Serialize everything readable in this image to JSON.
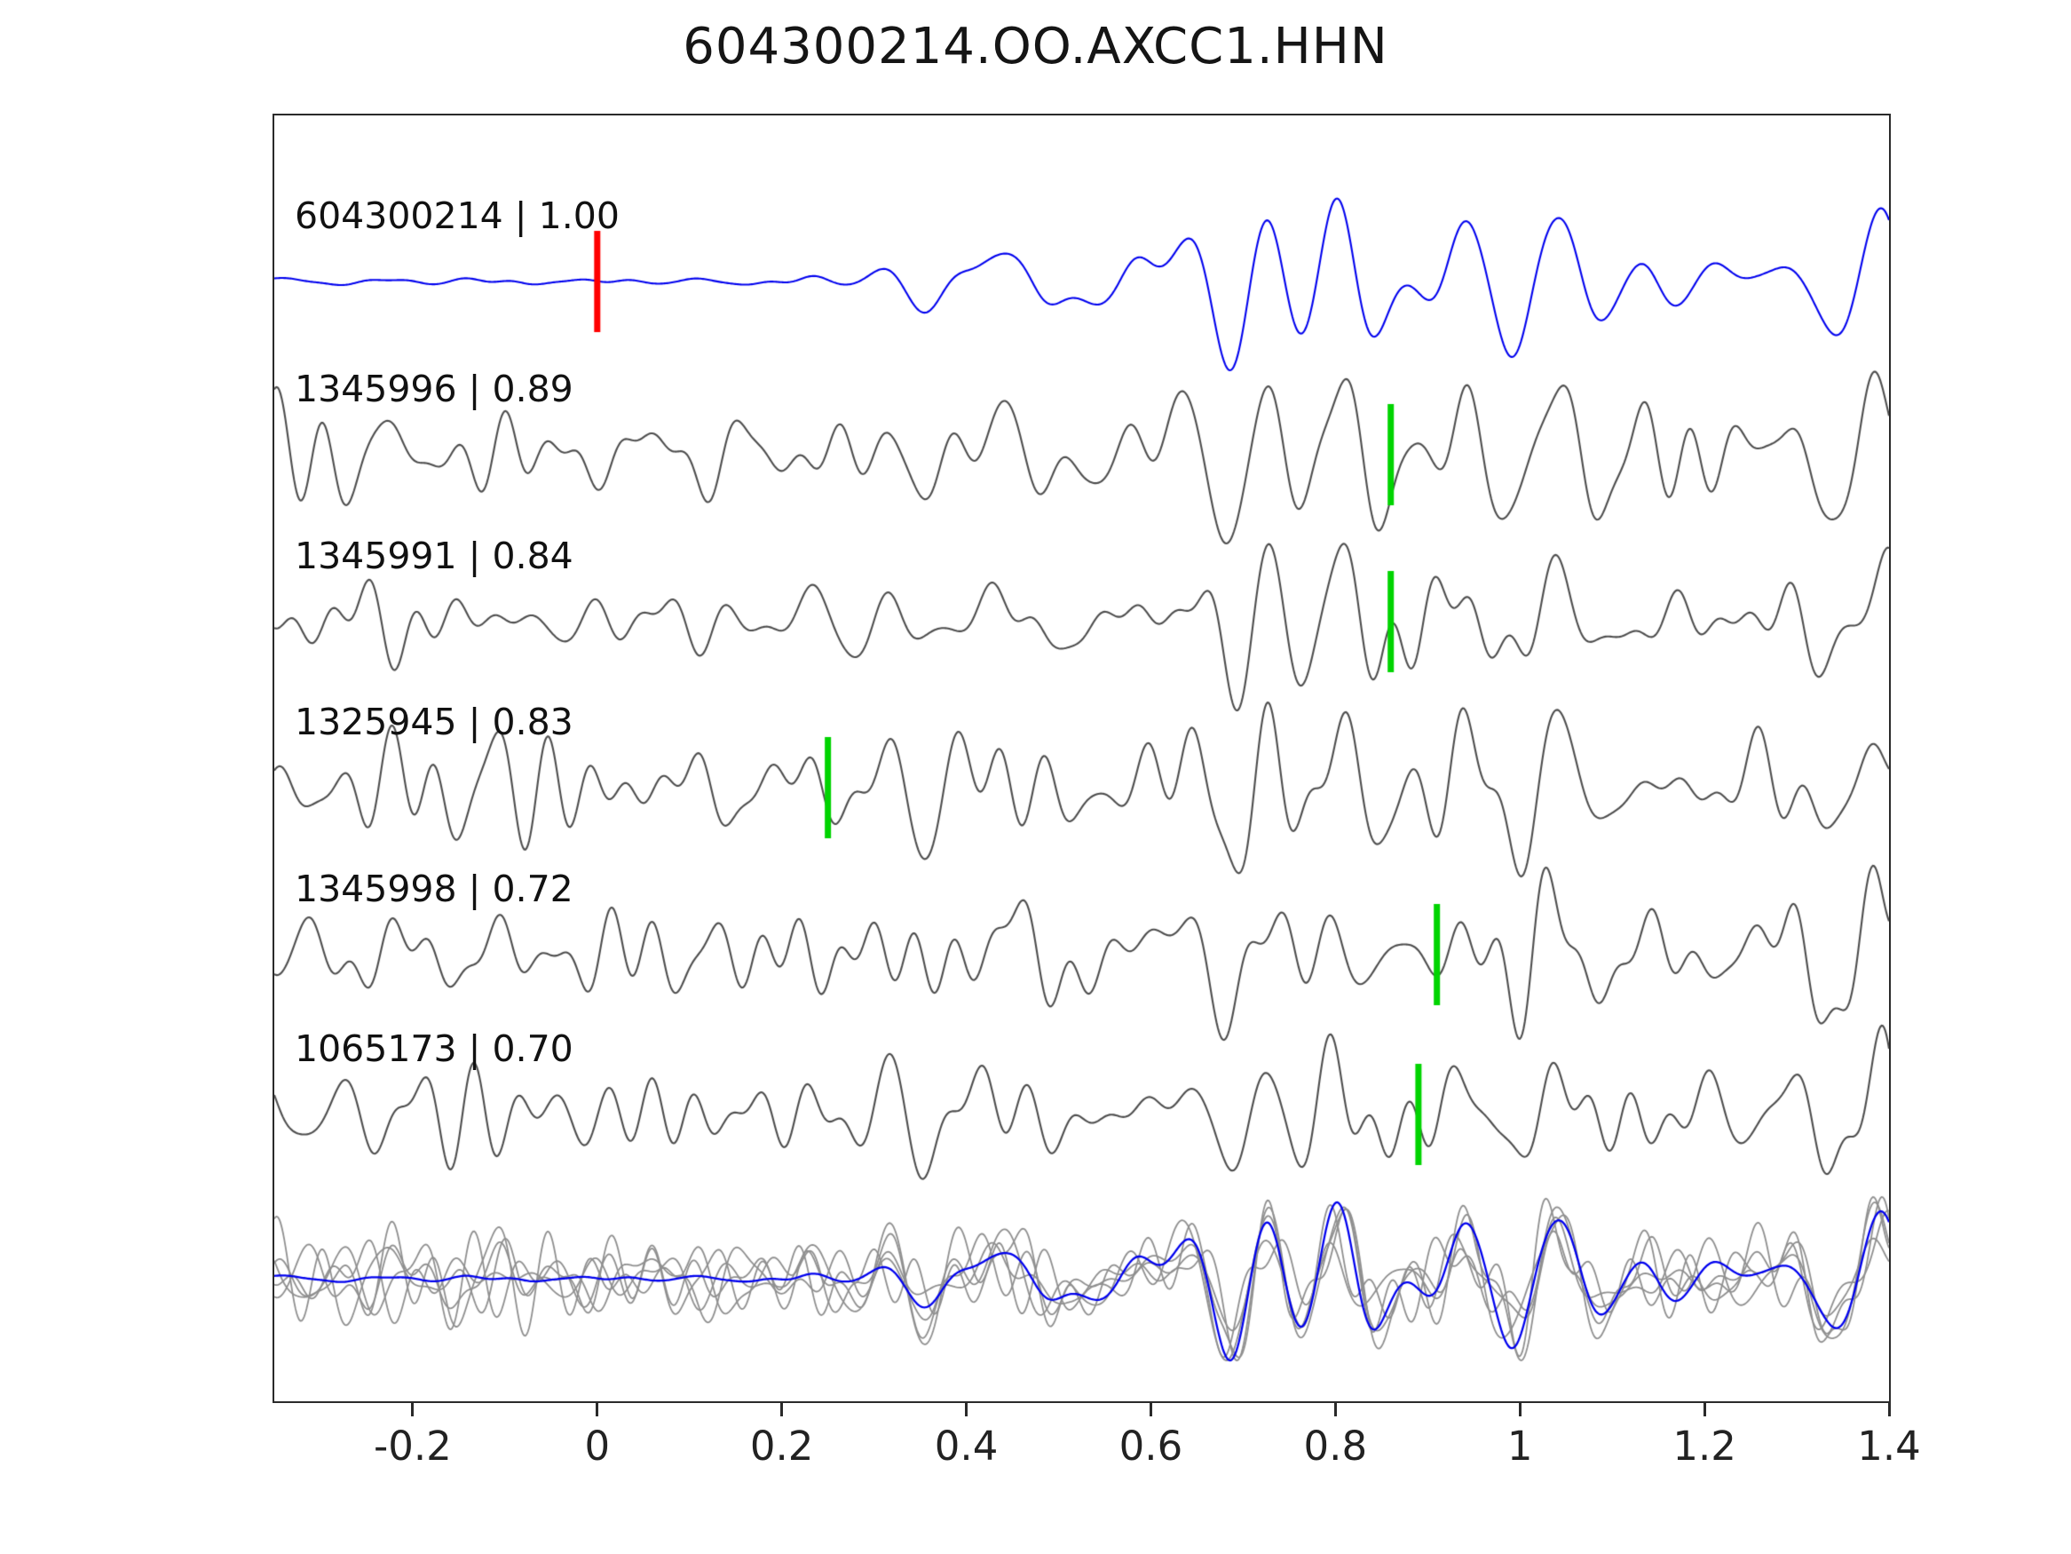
{
  "title": "604300214.OO.AXCC1.HHN",
  "chart_data": {
    "type": "line",
    "title": "604300214.OO.AXCC1.HHN",
    "xlim": [
      -0.35,
      1.4
    ],
    "xticks": [
      -0.2,
      0,
      0.2,
      0.4,
      0.6,
      0.8,
      1,
      1.2,
      1.4
    ],
    "xtick_labels": [
      "-0.2",
      "0",
      "0.2",
      "0.4",
      "0.6",
      "0.8",
      "1",
      "1.2",
      "1.4"
    ],
    "colors": {
      "template_trace": "#0000ee",
      "match_trace": "#4d4d4d",
      "overlay_gray": "#8f8f8f",
      "template_pick": "#ff0000",
      "match_pick": "#00d400",
      "axis": "#2a2a2a"
    },
    "traces": [
      {
        "label": "604300214 | 1.00",
        "event_id": "604300214",
        "correlation": 1.0,
        "pick_time": 0.0,
        "pick_color": "#ff0000",
        "line_color": "#0000ee",
        "role": "template"
      },
      {
        "label": "1345996 | 0.89",
        "event_id": "1345996",
        "correlation": 0.89,
        "pick_time": 0.86,
        "pick_color": "#00d400",
        "line_color": "#4d4d4d",
        "role": "match"
      },
      {
        "label": "1345991 | 0.84",
        "event_id": "1345991",
        "correlation": 0.84,
        "pick_time": 0.86,
        "pick_color": "#00d400",
        "line_color": "#4d4d4d",
        "role": "match"
      },
      {
        "label": "1325945 | 0.83",
        "event_id": "1325945",
        "correlation": 0.83,
        "pick_time": 0.25,
        "pick_color": "#00d400",
        "line_color": "#4d4d4d",
        "role": "match"
      },
      {
        "label": "1345998 | 0.72",
        "event_id": "1345998",
        "correlation": 0.72,
        "pick_time": 0.91,
        "pick_color": "#00d400",
        "line_color": "#4d4d4d",
        "role": "match"
      },
      {
        "label": "1065173 | 0.70",
        "event_id": "1065173",
        "correlation": 0.7,
        "pick_time": 0.89,
        "pick_color": "#00d400",
        "line_color": "#4d4d4d",
        "role": "match"
      }
    ],
    "overlay_row": {
      "gray_color": "#8f8f8f",
      "template_color": "#0000ee"
    }
  }
}
